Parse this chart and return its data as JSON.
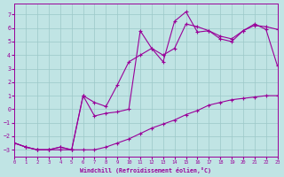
{
  "xlabel": "Windchill (Refroidissement éolien,°C)",
  "background_color": "#c0e4e4",
  "grid_color": "#9cc8c8",
  "line_color": "#990099",
  "xlim": [
    0,
    23
  ],
  "ylim": [
    -3.5,
    7.8
  ],
  "yticks": [
    -3,
    -2,
    -1,
    0,
    1,
    2,
    3,
    4,
    5,
    6,
    7
  ],
  "xticks": [
    0,
    1,
    2,
    3,
    4,
    5,
    6,
    7,
    8,
    9,
    10,
    11,
    12,
    13,
    14,
    15,
    16,
    17,
    18,
    19,
    20,
    21,
    22,
    23
  ],
  "line1_x": [
    0,
    1,
    2,
    3,
    4,
    5,
    6,
    7,
    8,
    9,
    10,
    11,
    12,
    13,
    14,
    15,
    16,
    17,
    18,
    19,
    20,
    21,
    22,
    23
  ],
  "line1_y": [
    -2.5,
    -2.8,
    -3.0,
    -3.0,
    -3.0,
    -3.0,
    -3.0,
    -3.0,
    -2.8,
    -2.5,
    -2.2,
    -1.8,
    -1.4,
    -1.1,
    -0.8,
    -0.4,
    -0.1,
    0.3,
    0.5,
    0.7,
    0.8,
    0.9,
    1.0,
    1.0
  ],
  "line2_x": [
    0,
    1,
    2,
    3,
    4,
    5,
    6,
    7,
    8,
    9,
    10,
    11,
    12,
    13,
    14,
    15,
    16,
    17,
    18,
    19,
    20,
    21,
    22,
    23
  ],
  "line2_y": [
    -2.5,
    -2.8,
    -3.0,
    -3.0,
    -2.8,
    -3.0,
    1.0,
    0.5,
    0.2,
    1.8,
    3.5,
    4.0,
    4.5,
    4.0,
    4.5,
    6.3,
    6.1,
    5.8,
    5.4,
    5.2,
    5.8,
    6.2,
    6.1,
    5.9
  ],
  "line3_x": [
    0,
    1,
    2,
    3,
    4,
    5,
    6,
    7,
    8,
    9,
    10,
    11,
    12,
    13,
    14,
    15,
    16,
    17,
    18,
    19,
    20,
    21,
    22,
    23
  ],
  "line3_y": [
    -2.5,
    -2.8,
    -3.0,
    -3.0,
    -2.8,
    -3.0,
    1.0,
    -0.5,
    -0.3,
    -0.2,
    0.0,
    5.8,
    4.5,
    3.5,
    6.5,
    7.2,
    5.7,
    5.8,
    5.2,
    5.0,
    5.8,
    6.3,
    5.9,
    3.2
  ]
}
